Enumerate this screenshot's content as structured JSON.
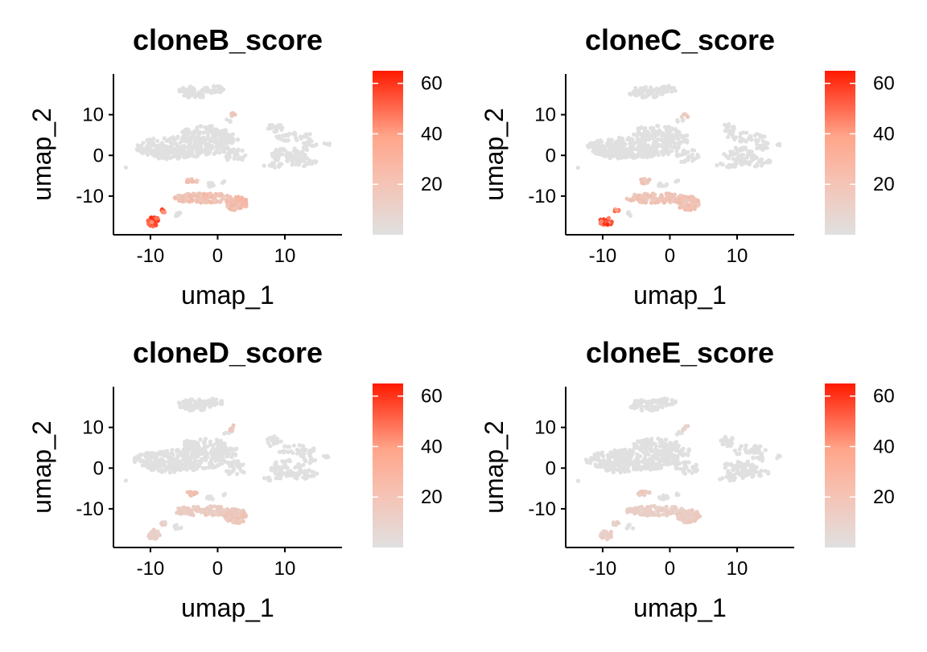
{
  "figure": {
    "background": "#ffffff",
    "colors": {
      "low": "#e0e0e0",
      "mid": "#ffa58a",
      "high": "#ff1a00"
    }
  },
  "chart_data": [
    {
      "type": "scatter",
      "title": "cloneB_score",
      "xlabel": "umap_1",
      "ylabel": "umap_2",
      "xlim": [
        -15.5,
        18.5
      ],
      "ylim": [
        -19.5,
        20
      ],
      "xticks": [
        -10,
        0,
        10
      ],
      "yticks": [
        -10,
        0,
        10
      ],
      "legend": {
        "title": "",
        "range": [
          0,
          65
        ],
        "ticks": [
          20,
          40,
          60
        ]
      },
      "highlights": [
        {
          "region": "bottom-left",
          "value": 62
        },
        {
          "region": "bottom-left-2",
          "value": 60
        },
        {
          "region": "lower-middle-blob",
          "value": 22
        },
        {
          "region": "lower-right-blob",
          "value": 25
        },
        {
          "region": "mid-small-cluster",
          "value": 20
        },
        {
          "region": "upper-right-islet",
          "value": 15
        }
      ]
    },
    {
      "type": "scatter",
      "title": "cloneC_score",
      "xlabel": "umap_1",
      "ylabel": "umap_2",
      "xlim": [
        -15.5,
        18.5
      ],
      "ylim": [
        -19.5,
        20
      ],
      "xticks": [
        -10,
        0,
        10
      ],
      "yticks": [
        -10,
        0,
        10
      ],
      "legend": {
        "title": "",
        "range": [
          0,
          65
        ],
        "ticks": [
          20,
          40,
          60
        ]
      },
      "highlights": [
        {
          "region": "bottom-left",
          "value": 63
        },
        {
          "region": "bottom-left-2",
          "value": 58
        },
        {
          "region": "lower-middle-blob",
          "value": 20
        },
        {
          "region": "lower-right-blob",
          "value": 24
        },
        {
          "region": "mid-small-cluster",
          "value": 18
        },
        {
          "region": "upper-right-islet",
          "value": 14
        }
      ]
    },
    {
      "type": "scatter",
      "title": "cloneD_score",
      "xlabel": "umap_1",
      "ylabel": "umap_2",
      "xlim": [
        -15.5,
        18.5
      ],
      "ylim": [
        -19.5,
        20
      ],
      "xticks": [
        -10,
        0,
        10
      ],
      "yticks": [
        -10,
        0,
        10
      ],
      "legend": {
        "title": "",
        "range": [
          0,
          65
        ],
        "ticks": [
          20,
          40,
          60
        ]
      },
      "highlights": [
        {
          "region": "bottom-left",
          "value": 12
        },
        {
          "region": "bottom-left-2",
          "value": 10
        },
        {
          "region": "lower-middle-blob",
          "value": 14
        },
        {
          "region": "lower-right-blob",
          "value": 18
        },
        {
          "region": "mid-small-cluster",
          "value": 22
        },
        {
          "region": "upper-right-islet",
          "value": 16
        }
      ]
    },
    {
      "type": "scatter",
      "title": "cloneE_score",
      "xlabel": "umap_1",
      "ylabel": "umap_2",
      "xlim": [
        -15.5,
        18.5
      ],
      "ylim": [
        -19.5,
        20
      ],
      "xticks": [
        -10,
        0,
        10
      ],
      "yticks": [
        -10,
        0,
        10
      ],
      "legend": {
        "title": "",
        "range": [
          0,
          65
        ],
        "ticks": [
          20,
          40,
          60
        ]
      },
      "highlights": [
        {
          "region": "bottom-left",
          "value": 12
        },
        {
          "region": "bottom-left-2",
          "value": 10
        },
        {
          "region": "lower-middle-blob",
          "value": 12
        },
        {
          "region": "lower-right-blob",
          "value": 14
        },
        {
          "region": "mid-small-cluster",
          "value": 15
        },
        {
          "region": "upper-right-islet",
          "value": 10
        }
      ]
    }
  ]
}
